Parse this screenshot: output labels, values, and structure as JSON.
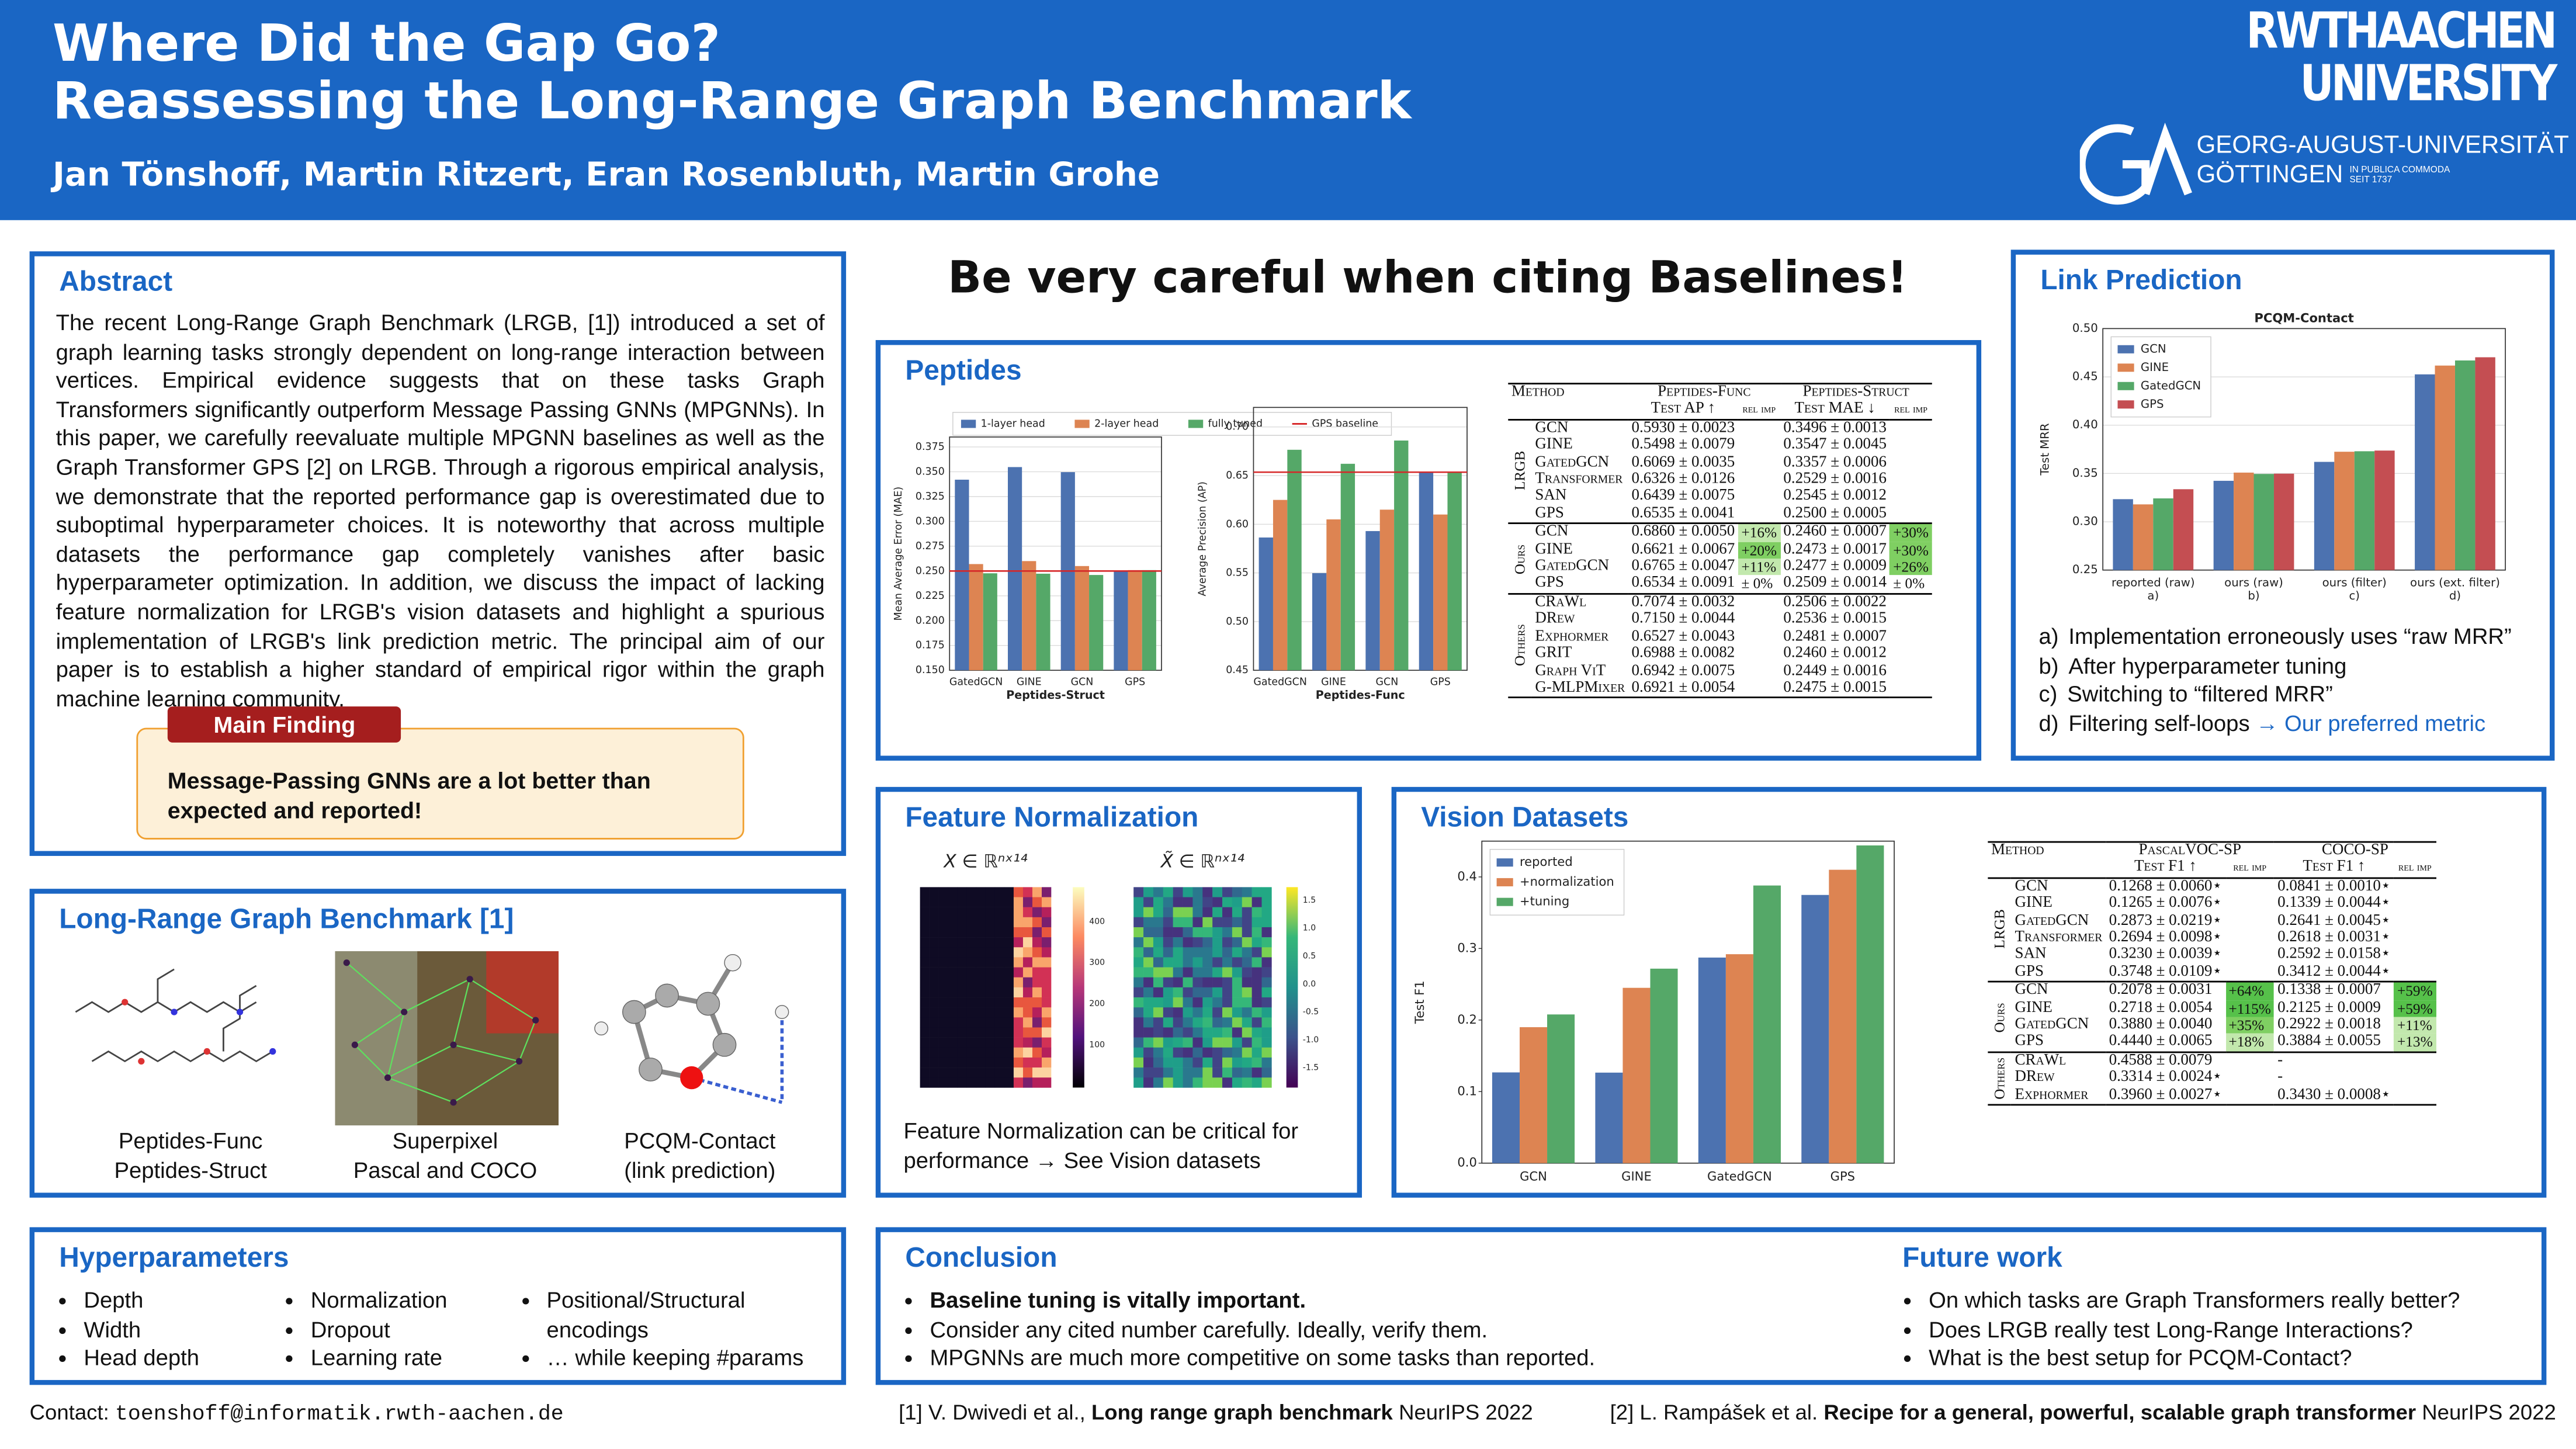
{
  "header": {
    "title": [
      "Where Did the Gap Go?",
      "Reassessing the Long-Range Graph Benchmark"
    ],
    "authors": "Jan Tönshoff, Martin Ritzert, Eran Rosenbluth, Martin Grohe",
    "logo_rwth": [
      "RWTHAACHEN",
      "UNIVERSITY"
    ],
    "logo_goe": [
      "GEORG-AUGUST-UNIVERSITÄT",
      "GÖTTINGEN",
      "IN PUBLICA COMMODA",
      "SEIT 1737"
    ]
  },
  "abstract": {
    "title": "Abstract",
    "text": "The recent Long-Range Graph Benchmark (LRGB, [1]) introduced a set of graph learning tasks strongly dependent on long-range interaction between vertices. Empirical evidence suggests that on these tasks Graph Transformers significantly outperform Message Passing GNNs (MPGNNs). In this paper, we carefully reevaluate multiple MPGNN baselines as well as the Graph Transformer GPS [2] on LRGB. Through a rigorous empirical analysis, we demonstrate that the reported performance gap is overestimated due to suboptimal hyperparameter choices. It is noteworthy that across multiple datasets the performance gap completely vanishes after basic hyperparameter optimization. In addition, we discuss the impact of lacking feature normalization for LRGB's vision datasets and highlight a spurious implementation of LRGB's link prediction metric. The principal aim of our paper is to establish a higher standard of empirical rigor within the graph machine learning community.",
    "finding_label": "Main Finding",
    "finding": "Message-Passing GNNs are a lot better than expected and reported!"
  },
  "lrgb": {
    "title": "Long-Range Graph Benchmark [1]",
    "captions": [
      [
        "Peptides-Func",
        "Peptides-Struct"
      ],
      [
        "Superpixel",
        "Pascal and COCO"
      ],
      [
        "PCQM-Contact",
        "(link prediction)"
      ]
    ]
  },
  "hyperparameters": {
    "title": "Hyperparameters",
    "columns": [
      [
        "Depth",
        "Width",
        "Head depth"
      ],
      [
        "Normalization",
        "Dropout",
        "Learning rate"
      ],
      [
        "Positional/Structural encodings",
        "… while keeping #params"
      ]
    ]
  },
  "headline": "Be very careful when citing Baselines!",
  "peptides": {
    "title": "Peptides",
    "table": {
      "header": [
        "Method",
        "Peptides-Func",
        "Peptides-Struct"
      ],
      "subheader": [
        "Test AP ↑",
        "rel imp",
        "Test MAE ↓",
        "rel imp"
      ],
      "groups": [
        {
          "name": "LRGB",
          "rows": [
            [
              "GCN",
              "0.5930 ± 0.0023",
              null,
              "0.3496 ± 0.0013",
              null
            ],
            [
              "GINE",
              "0.5498 ± 0.0079",
              null,
              "0.3547 ± 0.0045",
              null
            ],
            [
              "GatedGCN",
              "0.6069 ± 0.0035",
              null,
              "0.3357 ± 0.0006",
              null
            ],
            [
              "Transformer",
              "0.6326 ± 0.0126",
              null,
              "0.2529 ± 0.0016",
              null
            ],
            [
              "SAN",
              "0.6439 ± 0.0075",
              null,
              "0.2545 ± 0.0012",
              null
            ],
            [
              "GPS",
              "0.6535 ± 0.0041",
              null,
              "0.2500 ± 0.0005",
              null
            ]
          ]
        },
        {
          "name": "Ours",
          "rows": [
            [
              "GCN",
              "0.6860 ± 0.0050",
              "+16%",
              "0.2460 ± 0.0007",
              "+30%"
            ],
            [
              "GINE",
              "0.6621 ± 0.0067",
              "+20%",
              "0.2473 ± 0.0017",
              "+30%"
            ],
            [
              "GatedGCN",
              "0.6765 ± 0.0047",
              "+11%",
              "0.2477 ± 0.0009",
              "+26%"
            ],
            [
              "GPS",
              "0.6534 ± 0.0091",
              "± 0%",
              "0.2509 ± 0.0014",
              "± 0%"
            ]
          ]
        },
        {
          "name": "Others",
          "rows": [
            [
              "CRaWl",
              "0.7074 ± 0.0032",
              null,
              "0.2506 ± 0.0022",
              null
            ],
            [
              "DRew",
              "0.7150 ± 0.0044",
              null,
              "0.2536 ± 0.0015",
              null
            ],
            [
              "Exphormer",
              "0.6527 ± 0.0043",
              null,
              "0.2481 ± 0.0007",
              null
            ],
            [
              "GRIT",
              "0.6988 ± 0.0082",
              null,
              "0.2460 ± 0.0012",
              null
            ],
            [
              "Graph ViT",
              "0.6942 ± 0.0075",
              null,
              "0.2449 ± 0.0016",
              null
            ],
            [
              "G-MLPMixer",
              "0.6921 ± 0.0054",
              null,
              "0.2475 ± 0.0015",
              null
            ]
          ]
        }
      ]
    }
  },
  "link_prediction": {
    "title": "Link Prediction",
    "items": [
      {
        "label": "a)",
        "text": "Implementation erroneously uses “raw MRR”"
      },
      {
        "label": "b)",
        "text": "After hyperparameter tuning"
      },
      {
        "label": "c)",
        "text": "Switching to “filtered MRR”"
      },
      {
        "label": "d)",
        "text": "Filtering self-loops",
        "highlight": "→ Our preferred metric"
      }
    ]
  },
  "feature_normalization": {
    "title": "Feature Normalization",
    "left_label": "X ∈ ℝⁿˣ¹⁴",
    "right_label": "X̃ ∈ ℝⁿˣ¹⁴",
    "left_ticks": [
      "400",
      "300",
      "200",
      "100"
    ],
    "right_ticks": [
      "1.5",
      "1.0",
      "0.5",
      "0.0",
      "-0.5",
      "-1.0",
      "-1.5"
    ],
    "caption": "Feature Normalization can be critical for performance → See Vision datasets"
  },
  "vision": {
    "title": "Vision Datasets",
    "table": {
      "header": [
        "Method",
        "PascalVOC-SP",
        "COCO-SP"
      ],
      "subheader": [
        "Test F1 ↑",
        "rel imp",
        "Test F1 ↑",
        "rel imp"
      ],
      "groups": [
        {
          "name": "LRGB",
          "rows": [
            [
              "GCN",
              "0.1268 ± 0.0060⋆",
              null,
              "0.0841 ± 0.0010⋆",
              null
            ],
            [
              "GINE",
              "0.1265 ± 0.0076⋆",
              null,
              "0.1339 ± 0.0044⋆",
              null
            ],
            [
              "GatedGCN",
              "0.2873 ± 0.0219⋆",
              null,
              "0.2641 ± 0.0045⋆",
              null
            ],
            [
              "Transformer",
              "0.2694 ± 0.0098⋆",
              null,
              "0.2618 ± 0.0031⋆",
              null
            ],
            [
              "SAN",
              "0.3230 ± 0.0039⋆",
              null,
              "0.2592 ± 0.0158⋆",
              null
            ],
            [
              "GPS",
              "0.3748 ± 0.0109⋆",
              null,
              "0.3412 ± 0.0044⋆",
              null
            ]
          ]
        },
        {
          "name": "Ours",
          "rows": [
            [
              "GCN",
              "0.2078 ± 0.0031",
              "+64%",
              "0.1338 ± 0.0007",
              "+59%"
            ],
            [
              "GINE",
              "0.2718 ± 0.0054",
              "+115%",
              "0.2125 ± 0.0009",
              "+59%"
            ],
            [
              "GatedGCN",
              "0.3880 ± 0.0040",
              "+35%",
              "0.2922 ± 0.0018",
              "+11%"
            ],
            [
              "GPS",
              "0.4440 ± 0.0065",
              "+18%",
              "0.3884 ± 0.0055",
              "+13%"
            ]
          ]
        },
        {
          "name": "Others",
          "rows": [
            [
              "CRaWl",
              "0.4588 ± 0.0079",
              null,
              "-",
              null
            ],
            [
              "DRew",
              "0.3314 ± 0.0024⋆",
              null,
              "-",
              null
            ],
            [
              "Exphormer",
              "0.3960 ± 0.0027⋆",
              null,
              "0.3430 ± 0.0008⋆",
              null
            ]
          ]
        }
      ]
    }
  },
  "conclusion": {
    "title": "Conclusion",
    "items": [
      "Baseline tuning is vitally important.",
      "Consider any cited number carefully. Ideally, verify them.",
      "MPGNNs are much more competitive on some tasks than reported."
    ]
  },
  "future_work": {
    "title": "Future work",
    "items": [
      "On which tasks are Graph Transformers really better?",
      "Does LRGB really test Long-Range Interactions?",
      "What is the best setup for PCQM-Contact?"
    ]
  },
  "footer": {
    "contact_label": "Contact:",
    "contact": "toenshoff@informatik.rwth-aachen.de",
    "refs": [
      {
        "authors": "[1] V. Dwivedi et al.,",
        "title": "Long range graph benchmark",
        "venue": "NeurIPS 2022"
      },
      {
        "authors": "[2] L. Rampášek et al.",
        "title": "Recipe for a general, powerful, scalable graph transformer",
        "venue": "NeurIPS 2022"
      }
    ]
  },
  "chart_data": [
    {
      "type": "bar",
      "xlabel": "Peptides-Struct",
      "ylabel": "Mean Average Error (MAE)",
      "categories": [
        "GatedGCN",
        "GINE",
        "GCN",
        "GPS"
      ],
      "series": [
        {
          "name": "1-layer head",
          "color": "#4c72b0",
          "values": [
            0.342,
            0.3547,
            0.3496,
            0.25
          ]
        },
        {
          "name": "2-layer head",
          "color": "#dd8452",
          "values": [
            0.257,
            0.26,
            0.255,
            0.2509
          ]
        },
        {
          "name": "fully tuned",
          "color": "#55a868",
          "values": [
            0.2477,
            0.2473,
            0.246,
            0.2509
          ]
        }
      ],
      "baseline": {
        "name": "GPS baseline",
        "color": "#d62728",
        "value": 0.25
      },
      "ylim": [
        0.15,
        0.385
      ],
      "yticks": [
        {
          "value": 0.15,
          "label": "0.150"
        },
        0.175,
        {
          "value": 0.2,
          "label": "0.200"
        },
        0.225,
        {
          "value": 0.25,
          "label": "0.250"
        },
        0.275,
        {
          "value": 0.3,
          "label": "0.300"
        },
        0.325,
        {
          "value": 0.35,
          "label": "0.350"
        },
        0.375
      ],
      "grid": true,
      "legend": "top"
    },
    {
      "type": "bar",
      "xlabel": "Peptides-Func",
      "ylabel": "Average Precision (AP)",
      "categories": [
        "GatedGCN",
        "GINE",
        "GCN",
        "GPS"
      ],
      "series": [
        {
          "color": "#4c72b0",
          "values": [
            0.5864,
            0.5498,
            0.593,
            0.6535
          ]
        },
        {
          "color": "#dd8452",
          "values": [
            0.625,
            0.605,
            0.615,
            0.61
          ]
        },
        {
          "color": "#55a868",
          "values": [
            0.6765,
            0.6621,
            0.686,
            0.6534
          ]
        }
      ],
      "baseline": {
        "color": "#d62728",
        "value": 0.6535
      },
      "ylim": [
        0.45,
        0.72
      ],
      "yticks": [
        0.45,
        {
          "value": 0.5,
          "label": "0.50"
        },
        0.55,
        {
          "value": 0.6,
          "label": "0.60"
        },
        0.65,
        {
          "value": 0.7,
          "label": "0.70"
        }
      ],
      "grid": true
    },
    {
      "type": "bar",
      "title": "PCQM-Contact",
      "ylabel": "Test MRR",
      "categories": [
        "reported (raw)",
        "ours (raw)",
        "ours (filter)",
        "ours (ext. filter)"
      ],
      "sublabels": [
        "a)",
        "b)",
        "c)",
        "d)"
      ],
      "series": [
        {
          "name": "GCN",
          "color": "#4c72b0",
          "values": [
            0.3234,
            0.3424,
            0.362,
            0.4526
          ]
        },
        {
          "name": "GINE",
          "color": "#dd8452",
          "values": [
            0.318,
            0.3509,
            0.3725,
            0.4617
          ]
        },
        {
          "name": "GatedGCN",
          "color": "#55a868",
          "values": [
            0.3242,
            0.3495,
            0.373,
            0.467
          ]
        },
        {
          "name": "GPS",
          "color": "#c44e52",
          "values": [
            0.3337,
            0.3498,
            0.3737,
            0.4703
          ]
        }
      ],
      "ylim": [
        0.25,
        0.5
      ],
      "yticks": [
        0.25,
        {
          "value": 0.3,
          "label": "0.30"
        },
        0.35,
        {
          "value": 0.4,
          "label": "0.40"
        },
        0.45,
        {
          "value": 0.5,
          "label": "0.50"
        }
      ],
      "grid": true,
      "legend": "upper left"
    },
    {
      "type": "bar",
      "ylabel": "Test F1",
      "categories": [
        "GCN",
        "GINE",
        "GatedGCN",
        "GPS"
      ],
      "series": [
        {
          "name": "reported",
          "color": "#4c72b0",
          "values": [
            0.1268,
            0.1265,
            0.2873,
            0.3748
          ]
        },
        {
          "name": "+normalization",
          "color": "#dd8452",
          "values": [
            0.19,
            0.245,
            0.292,
            0.41
          ]
        },
        {
          "name": "+tuning",
          "color": "#55a868",
          "values": [
            0.2078,
            0.2718,
            0.388,
            0.444
          ]
        }
      ],
      "ylim": [
        0,
        0.45
      ],
      "yticks": [
        {
          "value": 0,
          "label": "0.0"
        },
        0.1,
        0.2,
        0.3,
        0.4
      ],
      "grid": false,
      "legend": "upper left"
    }
  ]
}
